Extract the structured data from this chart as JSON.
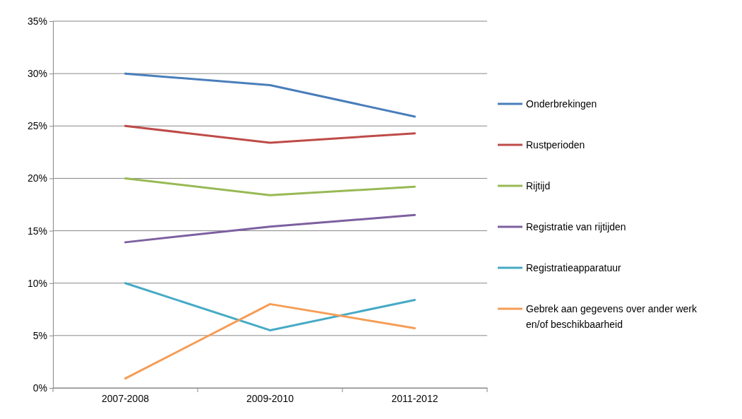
{
  "chart_data": {
    "type": "line",
    "categories": [
      "2007-2008",
      "2009-2010",
      "2011-2012"
    ],
    "series": [
      {
        "name": "Onderbrekingen",
        "color": "#4a7ebb",
        "values": [
          30,
          28.9,
          25.9
        ]
      },
      {
        "name": "Rustperioden",
        "color": "#be4b48",
        "values": [
          25,
          23.4,
          24.3
        ]
      },
      {
        "name": "Rijtijd",
        "color": "#98b954",
        "values": [
          20,
          18.4,
          19.2
        ]
      },
      {
        "name": "Registratie van rijtijden",
        "color": "#7d60a0",
        "values": [
          13.9,
          15.4,
          16.5
        ]
      },
      {
        "name": "Registratieapparatuur",
        "color": "#46aac5",
        "values": [
          10,
          5.5,
          8.4
        ]
      },
      {
        "name": "Gebrek aan gegevens over ander werk en/of beschikbaarheid",
        "color": "#f59d56",
        "values": [
          0.9,
          8,
          5.7
        ]
      }
    ],
    "ylim": [
      0,
      35
    ],
    "yticks": [
      {
        "value": 0,
        "label": "0%"
      },
      {
        "value": 5,
        "label": "5%"
      },
      {
        "value": 10,
        "label": "10%"
      },
      {
        "value": 15,
        "label": "15%"
      },
      {
        "value": 20,
        "label": "20%"
      },
      {
        "value": 25,
        "label": "25%"
      },
      {
        "value": 30,
        "label": "30%"
      },
      {
        "value": 35,
        "label": "35%"
      }
    ],
    "grid": "y",
    "legend": "right",
    "marker": "none",
    "line_style": "solid"
  }
}
